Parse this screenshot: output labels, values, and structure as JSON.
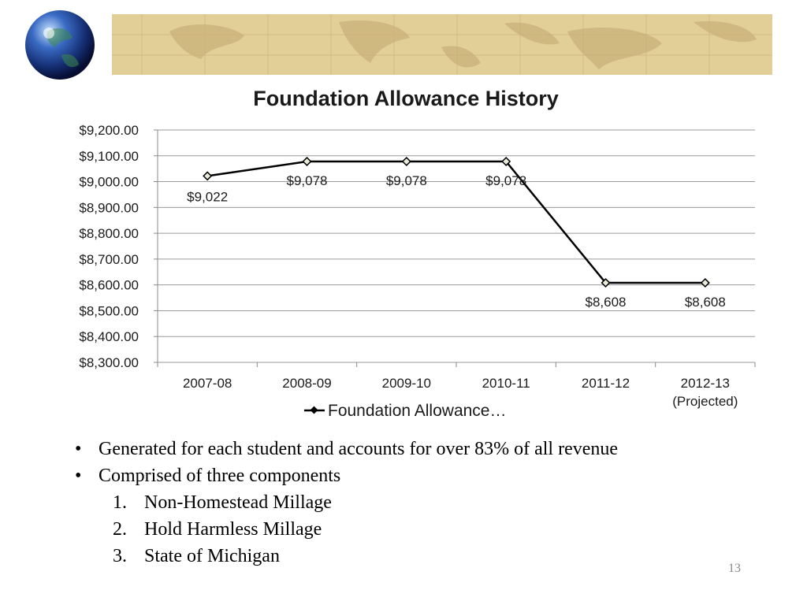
{
  "chart_data": {
    "type": "line",
    "title": "Foundation Allowance History",
    "categories": [
      "2007-08",
      "2008-09",
      "2009-10",
      "2010-11",
      "2011-12",
      "2012-13"
    ],
    "category_sublabels": [
      "",
      "",
      "",
      "",
      "",
      "(Projected)"
    ],
    "series": [
      {
        "name": "Foundation Allowance…",
        "values": [
          9022,
          9078,
          9078,
          9078,
          8608,
          8608
        ]
      }
    ],
    "data_labels": [
      "$9,022",
      "$9,078",
      "$9,078",
      "$9,078",
      "$8,608",
      "$8,608"
    ],
    "y_ticks": [
      9200,
      9100,
      9000,
      8900,
      8800,
      8700,
      8600,
      8500,
      8400,
      8300
    ],
    "y_tick_labels": [
      "$9,200.00",
      "$9,100.00",
      "$9,000.00",
      "$8,900.00",
      "$8,800.00",
      "$8,700.00",
      "$8,600.00",
      "$8,500.00",
      "$8,400.00",
      "$8,300.00"
    ],
    "ylim": [
      8300,
      9200
    ],
    "grid": true,
    "legend_position": "bottom",
    "line_color": "#000000",
    "marker_color": "#e8ecd8"
  },
  "bullets": [
    "Generated for each student and accounts for over 83% of all revenue",
    "Comprised of three components"
  ],
  "bullet_glyph": "•",
  "sub_items": [
    {
      "num": "1.",
      "text": "Non-Homestead Millage"
    },
    {
      "num": "2.",
      "text": "Hold Harmless Millage"
    },
    {
      "num": "3.",
      "text": "State of Michigan"
    }
  ],
  "page_number": "13",
  "banner_color": "#e2cf98",
  "banner_icon": "globe-icon"
}
